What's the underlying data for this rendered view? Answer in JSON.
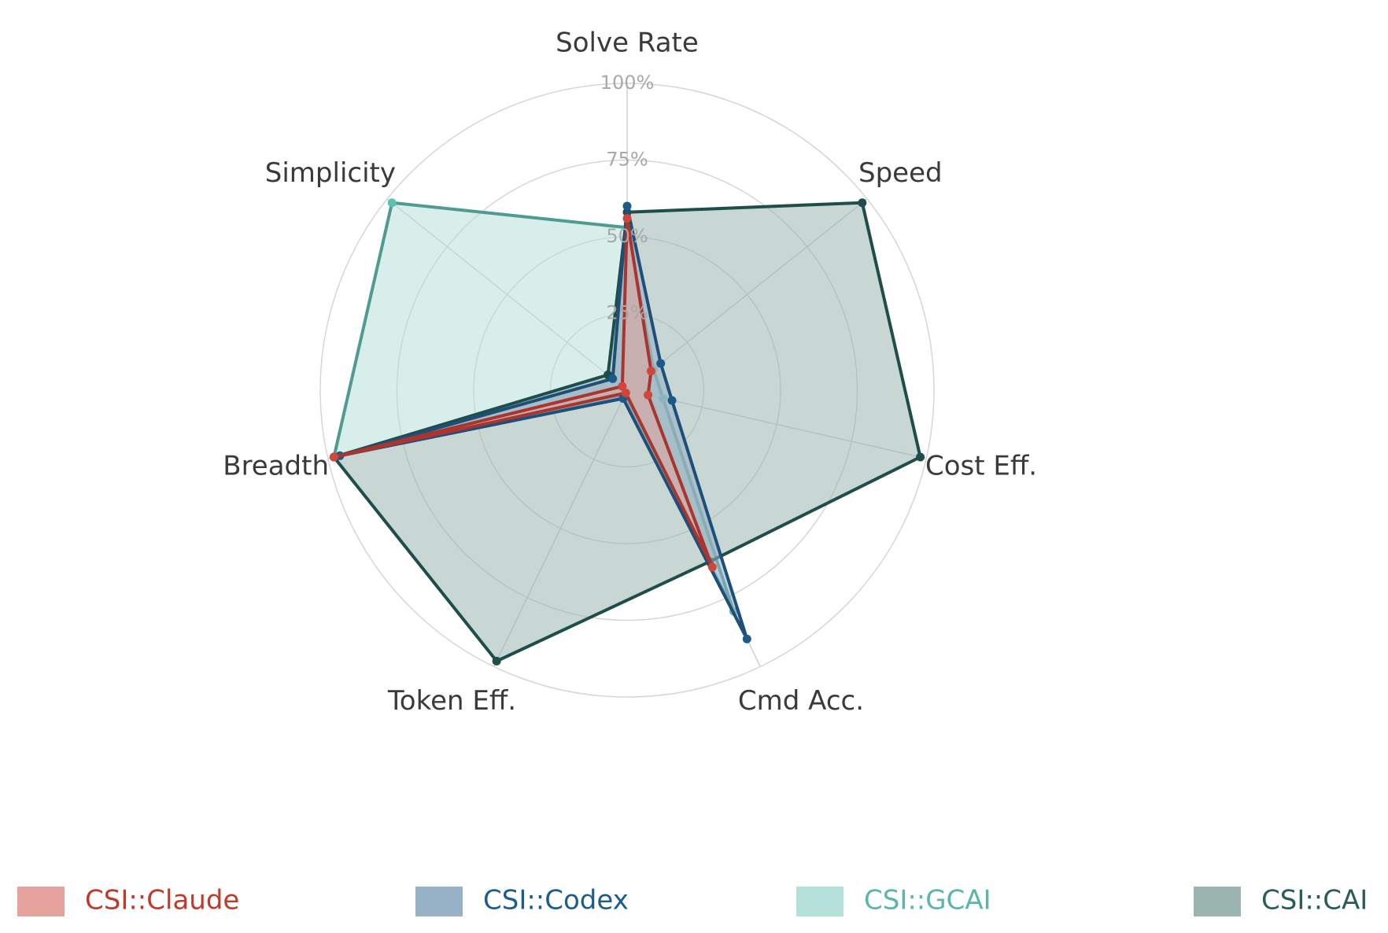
{
  "chart_data": {
    "type": "radar",
    "axes": [
      "Solve Rate",
      "Speed",
      "Cost Eff.",
      "Cmd Acc.",
      "Token Eff.",
      "Breadth",
      "Simplicity"
    ],
    "rlim": [
      0,
      100
    ],
    "ticks": [
      {
        "value": 25,
        "label": "25%"
      },
      {
        "value": 50,
        "label": "50%"
      },
      {
        "value": 75,
        "label": "75%"
      },
      {
        "value": 100,
        "label": "100%"
      }
    ],
    "legend_position": "bottom",
    "series": [
      {
        "name": "CSI::GCAI",
        "fill": "#b6e0da",
        "stroke": "#4f9b91",
        "marker": "#5cc0b3",
        "text": "#5cb5aa",
        "values": [
          53,
          11,
          12,
          80,
          2,
          98,
          98
        ]
      },
      {
        "name": "CSI::CAI",
        "fill": "#9bb4b0",
        "stroke": "#1f4d4a",
        "marker": "#1f4d4a",
        "text": "#2a5d59",
        "values": [
          58,
          98,
          98,
          62,
          98,
          98,
          8
        ]
      },
      {
        "name": "CSI::Codex",
        "fill": "#97b1c7",
        "stroke": "#1d4f78",
        "marker": "#1d5a8a",
        "text": "#1e5c8a",
        "values": [
          60,
          14,
          15,
          90,
          3,
          96,
          6
        ]
      },
      {
        "name": "CSI::Claude",
        "fill": "#e6a39d",
        "stroke": "#a9352e",
        "marker": "#d0463a",
        "text": "#c0392b",
        "values": [
          56,
          10,
          7,
          64,
          1,
          98,
          2
        ]
      }
    ],
    "legend_order": [
      "CSI::Claude",
      "CSI::Codex",
      "CSI::GCAI",
      "CSI::CAI"
    ]
  }
}
